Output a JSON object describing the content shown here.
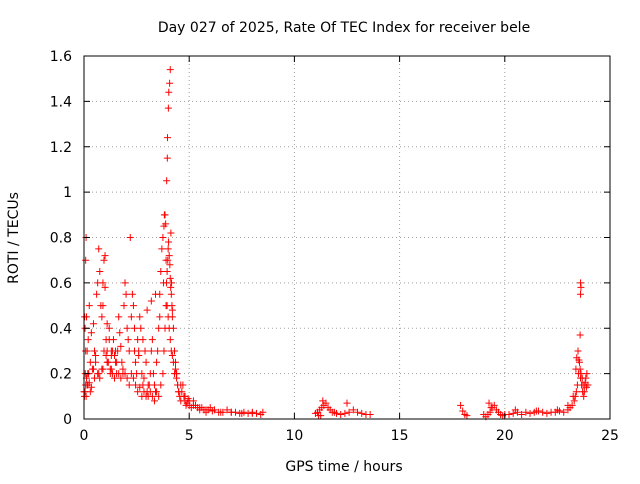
{
  "chart_data": {
    "type": "scatter",
    "title": "Day 027 of 2025, Rate Of TEC Index for receiver bele",
    "xlabel": "GPS time / hours",
    "ylabel": "ROTI / TECUs",
    "xlim": [
      0,
      25
    ],
    "ylim": [
      0,
      1.6
    ],
    "grid": true,
    "marker": "+",
    "color": "#ff0000",
    "x_ticks": [
      0,
      5,
      10,
      15,
      20,
      25
    ],
    "x_tick_labels": [
      "0",
      "5",
      "10",
      "15",
      "20",
      "25"
    ],
    "y_ticks": [
      0,
      0.2,
      0.4,
      0.6,
      0.8,
      1.0,
      1.2,
      1.4,
      1.6
    ],
    "y_tick_labels": [
      "0",
      "0.2",
      "0.4",
      "0.6",
      "0.8",
      "1",
      "1.2",
      "1.4",
      "1.6"
    ],
    "series": [
      {
        "name": "ROTI",
        "x": [
          0.0,
          0.05,
          0.08,
          0.1,
          0.12,
          0.15,
          0.18,
          0.2,
          0.22,
          0.25,
          0.3,
          0.35,
          0.4,
          0.45,
          0.5,
          0.55,
          0.6,
          0.65,
          0.7,
          0.75,
          0.8,
          0.85,
          0.9,
          0.95,
          1.0,
          1.05,
          1.1,
          1.15,
          1.2,
          1.25,
          1.3,
          1.35,
          1.4,
          1.45,
          1.5,
          1.55,
          1.6,
          1.65,
          1.7,
          1.75,
          1.8,
          1.85,
          1.9,
          1.95,
          2.0,
          2.05,
          2.1,
          2.15,
          2.2,
          2.25,
          2.3,
          2.35,
          2.4,
          2.45,
          2.5,
          2.55,
          2.6,
          2.65,
          2.7,
          2.75,
          2.8,
          2.85,
          2.9,
          2.95,
          3.0,
          3.05,
          3.1,
          3.15,
          3.2,
          3.25,
          3.3,
          3.35,
          3.4,
          3.45,
          3.5,
          3.55,
          3.6,
          3.65,
          3.7,
          3.75,
          3.8,
          3.85,
          3.9,
          3.95,
          4.0,
          4.05,
          4.1,
          4.15,
          4.2,
          4.25,
          4.3,
          4.35,
          4.4,
          4.45,
          4.5,
          4.55,
          4.6,
          4.65,
          4.7,
          4.75,
          4.8,
          4.85,
          4.9,
          4.95,
          5.0,
          5.1,
          5.2,
          5.3,
          5.4,
          5.5,
          5.6,
          5.7,
          5.8,
          5.9,
          6.0,
          6.2,
          6.4,
          6.6,
          6.8,
          7.0,
          7.2,
          7.4,
          7.6,
          7.8,
          8.0,
          8.2,
          8.4,
          0.1,
          0.15,
          0.3,
          0.5,
          0.7,
          0.9,
          1.1,
          1.3,
          1.5,
          0.02,
          0.05,
          0.08,
          0.12,
          0.18,
          0.25,
          0.35,
          0.45,
          0.55,
          0.65,
          0.75,
          0.85,
          0.95,
          1.05,
          1.15,
          1.25,
          1.35,
          1.45,
          1.55,
          1.65,
          1.75,
          1.85,
          1.95,
          2.05,
          2.15,
          2.25,
          2.35,
          2.45,
          2.55,
          2.65,
          2.75,
          2.85,
          2.95,
          3.05,
          3.15,
          3.25,
          3.35,
          3.45,
          3.55,
          3.65,
          3.75,
          3.8,
          3.85,
          3.9,
          3.92,
          3.95,
          3.98,
          4.0,
          4.02,
          4.05,
          4.08,
          4.1,
          4.12,
          4.15,
          4.18,
          4.2,
          4.25,
          4.3,
          4.35,
          4.4,
          4.45,
          4.5,
          0.03,
          0.08,
          0.9,
          1.0,
          1.1,
          1.2,
          1.3,
          0.06,
          2.4,
          2.6,
          2.8,
          3.0,
          3.2,
          3.4,
          3.6,
          3.78,
          3.82,
          3.88,
          3.93,
          3.96,
          3.97,
          4.01,
          4.03,
          4.07,
          4.1,
          4.13,
          4.16,
          4.2,
          4.3,
          4.4,
          4.6,
          4.8,
          5.0,
          5.2,
          5.5,
          5.8,
          6.1,
          6.5,
          7.0,
          7.5,
          8.0,
          8.5,
          11.0,
          11.1,
          11.2,
          11.3,
          11.4,
          11.5,
          11.6,
          11.7,
          11.8,
          11.9,
          12.0,
          12.2,
          12.4,
          12.6,
          12.8,
          13.0,
          13.2,
          13.4,
          13.6,
          11.15,
          11.25,
          11.35,
          12.5,
          17.9,
          18.0,
          18.1,
          18.2,
          19.0,
          19.1,
          19.2,
          19.3,
          19.4,
          19.5,
          19.6,
          19.7,
          19.8,
          19.9,
          20.0,
          20.2,
          20.4,
          20.6,
          20.8,
          21.0,
          21.2,
          21.4,
          21.6,
          21.8,
          22.0,
          22.2,
          22.4,
          22.6,
          22.8,
          23.0,
          23.1,
          23.2,
          23.3,
          23.35,
          23.4,
          23.45,
          23.5,
          23.55,
          23.6,
          23.65,
          23.7,
          23.75,
          23.8,
          23.85,
          23.9,
          23.95,
          19.25,
          19.35,
          20.5,
          21.5,
          22.5,
          23.0,
          23.25,
          23.38,
          23.42,
          23.48,
          23.52,
          23.58,
          23.62,
          23.68,
          23.72,
          23.78,
          23.82,
          23.88,
          23.58,
          23.6,
          23.62,
          23.6
        ],
        "y": [
          0.12,
          0.4,
          0.7,
          0.8,
          0.45,
          0.3,
          0.15,
          0.35,
          0.2,
          0.5,
          0.25,
          0.38,
          0.22,
          0.42,
          0.3,
          0.28,
          0.55,
          0.6,
          0.75,
          0.65,
          0.5,
          0.45,
          0.6,
          0.7,
          0.72,
          0.35,
          0.3,
          0.25,
          0.4,
          0.2,
          0.22,
          0.3,
          0.35,
          0.28,
          0.25,
          0.2,
          0.3,
          0.45,
          0.38,
          0.32,
          0.25,
          0.2,
          0.5,
          0.6,
          0.55,
          0.4,
          0.35,
          0.3,
          0.8,
          0.45,
          0.55,
          0.5,
          0.4,
          0.25,
          0.2,
          0.35,
          0.3,
          0.45,
          0.4,
          0.2,
          0.15,
          0.18,
          0.3,
          0.25,
          0.12,
          0.1,
          0.15,
          0.2,
          0.3,
          0.35,
          0.2,
          0.15,
          0.12,
          0.25,
          0.3,
          0.4,
          0.55,
          0.65,
          0.75,
          0.8,
          0.85,
          0.9,
          0.7,
          0.5,
          0.45,
          0.4,
          0.35,
          0.3,
          0.28,
          0.25,
          0.2,
          0.22,
          0.18,
          0.15,
          0.12,
          0.1,
          0.08,
          0.12,
          0.15,
          0.1,
          0.08,
          0.06,
          0.07,
          0.09,
          0.06,
          0.05,
          0.08,
          0.06,
          0.05,
          0.04,
          0.05,
          0.04,
          0.03,
          0.04,
          0.05,
          0.04,
          0.03,
          0.03,
          0.04,
          0.03,
          0.03,
          0.025,
          0.03,
          0.025,
          0.03,
          0.025,
          0.02,
          0.1,
          0.15,
          0.12,
          0.18,
          0.2,
          0.22,
          0.25,
          0.28,
          0.3,
          0.1,
          0.12,
          0.15,
          0.18,
          0.2,
          0.16,
          0.14,
          0.22,
          0.25,
          0.2,
          0.18,
          0.22,
          0.3,
          0.28,
          0.25,
          0.22,
          0.2,
          0.18,
          0.25,
          0.2,
          0.18,
          0.22,
          0.2,
          0.18,
          0.15,
          0.2,
          0.18,
          0.15,
          0.12,
          0.14,
          0.1,
          0.12,
          0.1,
          0.15,
          0.12,
          0.1,
          0.08,
          0.12,
          0.1,
          0.15,
          0.2,
          0.3,
          0.4,
          0.5,
          0.6,
          0.65,
          0.7,
          0.75,
          0.78,
          0.72,
          0.68,
          0.62,
          0.58,
          0.55,
          0.5,
          0.45,
          0.4,
          0.3,
          0.25,
          0.2,
          0.15,
          0.12,
          0.45,
          0.3,
          0.5,
          0.58,
          0.42,
          0.35,
          0.3,
          0.2,
          0.3,
          0.28,
          0.35,
          0.48,
          0.52,
          0.55,
          0.45,
          0.6,
          0.9,
          0.86,
          1.05,
          1.15,
          1.24,
          1.37,
          1.44,
          1.48,
          1.54,
          0.82,
          0.6,
          0.48,
          0.3,
          0.2,
          0.15,
          0.1,
          0.08,
          0.06,
          0.05,
          0.04,
          0.035,
          0.03,
          0.03,
          0.025,
          0.025,
          0.03,
          0.025,
          0.03,
          0.04,
          0.05,
          0.06,
          0.07,
          0.05,
          0.04,
          0.03,
          0.03,
          0.025,
          0.02,
          0.025,
          0.03,
          0.04,
          0.03,
          0.025,
          0.02,
          0.02,
          0.015,
          0.015,
          0.08,
          0.07,
          0.06,
          0.035,
          0.02,
          0.015,
          0.02,
          0.01,
          0.02,
          0.03,
          0.05,
          0.06,
          0.04,
          0.03,
          0.02,
          0.015,
          0.02,
          0.02,
          0.025,
          0.03,
          0.02,
          0.03,
          0.025,
          0.03,
          0.035,
          0.03,
          0.025,
          0.03,
          0.03,
          0.035,
          0.03,
          0.04,
          0.05,
          0.06,
          0.08,
          0.1,
          0.12,
          0.15,
          0.2,
          0.25,
          0.18,
          0.15,
          0.12,
          0.1,
          0.15,
          0.18,
          0.2,
          0.15,
          0.07,
          0.05,
          0.04,
          0.035,
          0.04,
          0.06,
          0.1,
          0.22,
          0.27,
          0.3,
          0.26,
          0.22,
          0.2,
          0.18,
          0.15,
          0.12,
          0.16,
          0.14,
          0.37,
          0.55,
          0.58,
          0.6
        ]
      }
    ]
  }
}
